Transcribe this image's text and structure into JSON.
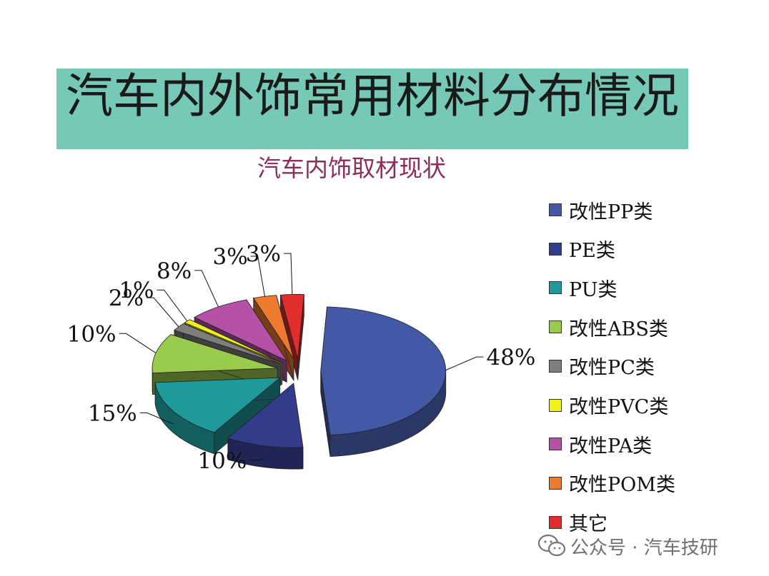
{
  "title": "汽车内外饰常用材料分布情况",
  "colors": {
    "title_band": "#77C9B7",
    "subtitle": "#8B2E5B"
  },
  "watermark": {
    "icon": "wechat-icon",
    "text": "公众号 · 汽车技研"
  },
  "chart_data": {
    "type": "pie",
    "title": "汽车内饰取材现状",
    "style": "exploded-3d",
    "legend_position": "right",
    "categories": [
      "改性PP类",
      "PE类",
      "PU类",
      "改性ABS类",
      "改性PC类",
      "改性PVC类",
      "改性PA类",
      "改性POM类",
      "其它"
    ],
    "values": [
      48,
      10,
      15,
      10,
      2,
      1,
      8,
      3,
      3
    ],
    "labels": [
      "48%",
      "10%",
      "15%",
      "10%",
      "2%",
      "1%",
      "8%",
      "3%",
      "3%"
    ],
    "colors": [
      "#4459A6",
      "#333C8A",
      "#1F9A9B",
      "#9BCB4D",
      "#7E7E7E",
      "#F2F21A",
      "#B552A6",
      "#EE7A2F",
      "#E22D2D"
    ]
  }
}
